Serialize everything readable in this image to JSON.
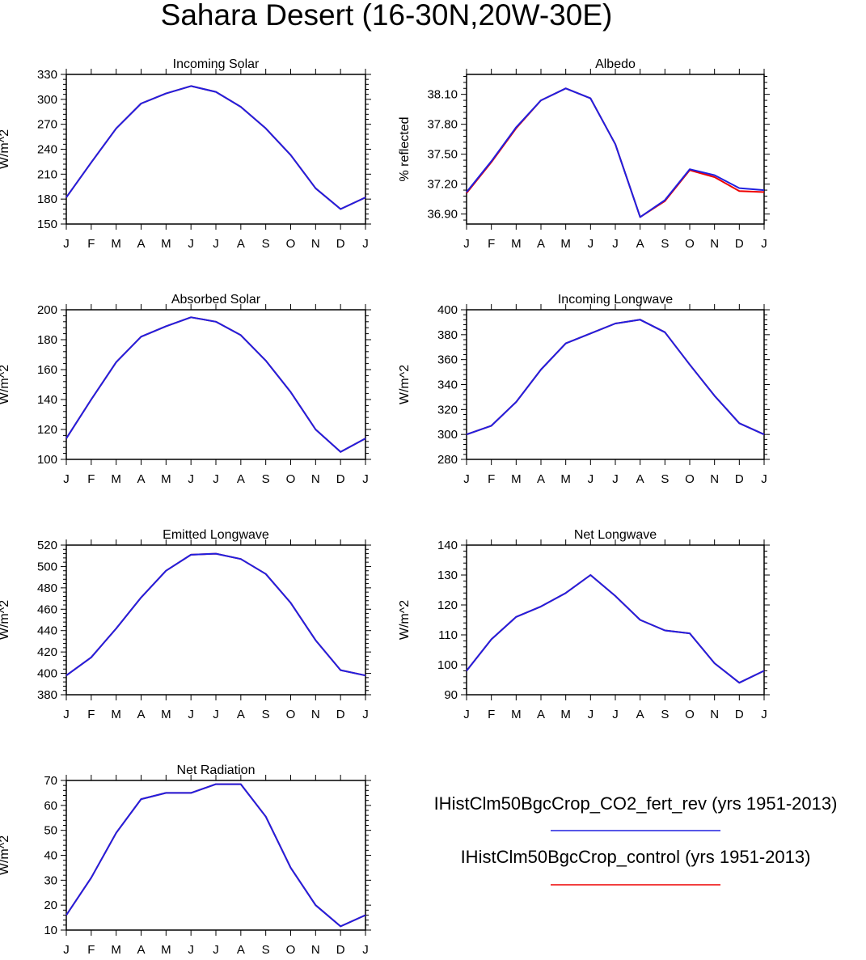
{
  "title": "Sahara Desert (16-30N,20W-30E)",
  "months": [
    "J",
    "F",
    "M",
    "A",
    "M",
    "J",
    "J",
    "A",
    "S",
    "O",
    "N",
    "D",
    "J"
  ],
  "colors": {
    "fert": "#2020e0",
    "control": "#ee0000"
  },
  "legend": [
    {
      "label": "IHistClm50BgcCrop_CO2_fert_rev (yrs 1951-2013)",
      "color": "#2020e0"
    },
    {
      "label": "IHistClm50BgcCrop_control (yrs 1951-2013)",
      "color": "#ee0000"
    }
  ],
  "chart_data": [
    {
      "type": "line",
      "title": "Incoming Solar",
      "ylabel": "W/m^2",
      "ylim": [
        150,
        330
      ],
      "yticks": [
        150,
        180,
        210,
        240,
        270,
        300,
        330
      ],
      "ytick_labels": [
        "150",
        "180",
        "210",
        "240",
        "270",
        "300",
        "330"
      ],
      "series": [
        {
          "name": "IHistClm50BgcCrop_CO2_fert_rev (yrs 1951-2013)",
          "values": [
            182,
            224,
            265,
            295,
            307,
            316,
            309,
            291,
            265,
            233,
            193,
            168,
            182
          ]
        },
        {
          "name": "IHistClm50BgcCrop_control (yrs 1951-2013)",
          "values": [
            182,
            224,
            265,
            295,
            307,
            316,
            309,
            291,
            265,
            233,
            193,
            168,
            182
          ]
        }
      ]
    },
    {
      "type": "line",
      "title": "Albedo",
      "ylabel": "% reflected",
      "ylim": [
        36.8,
        38.3
      ],
      "yticks": [
        36.9,
        37.2,
        37.5,
        37.8,
        38.1
      ],
      "ytick_labels": [
        "36.90",
        "37.20",
        "37.50",
        "37.80",
        "38.10"
      ],
      "series": [
        {
          "name": "IHistClm50BgcCrop_CO2_fert_rev (yrs 1951-2013)",
          "values": [
            37.12,
            37.43,
            37.77,
            38.04,
            38.16,
            38.06,
            37.6,
            36.87,
            37.04,
            37.35,
            37.29,
            37.16,
            37.14
          ]
        },
        {
          "name": "IHistClm50BgcCrop_control (yrs 1951-2013)",
          "values": [
            37.11,
            37.42,
            37.76,
            38.04,
            38.16,
            38.06,
            37.6,
            36.87,
            37.03,
            37.34,
            37.27,
            37.13,
            37.12
          ]
        }
      ]
    },
    {
      "type": "line",
      "title": "Absorbed Solar",
      "ylabel": "W/m^2",
      "ylim": [
        100,
        200
      ],
      "yticks": [
        100,
        120,
        140,
        160,
        180,
        200
      ],
      "ytick_labels": [
        "100",
        "120",
        "140",
        "160",
        "180",
        "200"
      ],
      "series": [
        {
          "name": "IHistClm50BgcCrop_CO2_fert_rev (yrs 1951-2013)",
          "values": [
            114,
            140,
            165,
            182,
            189,
            195,
            192,
            183,
            166,
            145,
            120,
            105,
            114
          ]
        },
        {
          "name": "IHistClm50BgcCrop_control (yrs 1951-2013)",
          "values": [
            114,
            140,
            165,
            182,
            189,
            195,
            192,
            183,
            166,
            145,
            120,
            105,
            114
          ]
        }
      ]
    },
    {
      "type": "line",
      "title": "Incoming Longwave",
      "ylabel": "W/m^2",
      "ylim": [
        280,
        400
      ],
      "yticks": [
        280,
        300,
        320,
        340,
        360,
        380,
        400
      ],
      "ytick_labels": [
        "280",
        "300",
        "320",
        "340",
        "360",
        "380",
        "400"
      ],
      "series": [
        {
          "name": "IHistClm50BgcCrop_CO2_fert_rev (yrs 1951-2013)",
          "values": [
            300,
            307,
            326,
            352,
            373,
            381,
            389,
            392,
            382,
            356,
            331,
            309,
            300
          ]
        },
        {
          "name": "IHistClm50BgcCrop_control (yrs 1951-2013)",
          "values": [
            300,
            307,
            326,
            352,
            373,
            381,
            389,
            392,
            382,
            356,
            331,
            309,
            300
          ]
        }
      ]
    },
    {
      "type": "line",
      "title": "Emitted Longwave",
      "ylabel": "W/m^2",
      "ylim": [
        380,
        520
      ],
      "yticks": [
        380,
        400,
        420,
        440,
        460,
        480,
        500,
        520
      ],
      "ytick_labels": [
        "380",
        "400",
        "420",
        "440",
        "460",
        "480",
        "500",
        "520"
      ],
      "series": [
        {
          "name": "IHistClm50BgcCrop_CO2_fert_rev (yrs 1951-2013)",
          "values": [
            398,
            415,
            442,
            471,
            496,
            511,
            512,
            507,
            493,
            466,
            431,
            403,
            398
          ]
        },
        {
          "name": "IHistClm50BgcCrop_control (yrs 1951-2013)",
          "values": [
            398,
            415,
            442,
            471,
            496,
            511,
            512,
            507,
            493,
            466,
            431,
            403,
            398
          ]
        }
      ]
    },
    {
      "type": "line",
      "title": "Net Longwave",
      "ylabel": "W/m^2",
      "ylim": [
        90,
        140
      ],
      "yticks": [
        90,
        100,
        110,
        120,
        130,
        140
      ],
      "ytick_labels": [
        "90",
        "100",
        "110",
        "120",
        "130",
        "140"
      ],
      "series": [
        {
          "name": "IHistClm50BgcCrop_CO2_fert_rev (yrs 1951-2013)",
          "values": [
            98,
            108.5,
            116,
            119.5,
            124,
            130,
            123,
            115,
            111.5,
            110.5,
            100.5,
            94,
            98
          ]
        },
        {
          "name": "IHistClm50BgcCrop_control (yrs 1951-2013)",
          "values": [
            98,
            108.5,
            116,
            119.5,
            124,
            130,
            123,
            115,
            111.5,
            110.5,
            100.5,
            94,
            98
          ]
        }
      ]
    },
    {
      "type": "line",
      "title": "Net Radiation",
      "ylabel": "W/m^2",
      "ylim": [
        10,
        70
      ],
      "yticks": [
        10,
        20,
        30,
        40,
        50,
        60,
        70
      ],
      "ytick_labels": [
        "10",
        "20",
        "30",
        "40",
        "50",
        "60",
        "70"
      ],
      "series": [
        {
          "name": "IHistClm50BgcCrop_CO2_fert_rev (yrs 1951-2013)",
          "values": [
            16,
            31,
            49,
            62.5,
            65,
            65,
            68.5,
            68.5,
            55.5,
            35,
            20,
            11.5,
            16
          ]
        },
        {
          "name": "IHistClm50BgcCrop_control (yrs 1951-2013)",
          "values": [
            16,
            31,
            49,
            62.5,
            65,
            65,
            68.5,
            68.5,
            55.5,
            35,
            20,
            11.5,
            16
          ]
        }
      ]
    }
  ]
}
